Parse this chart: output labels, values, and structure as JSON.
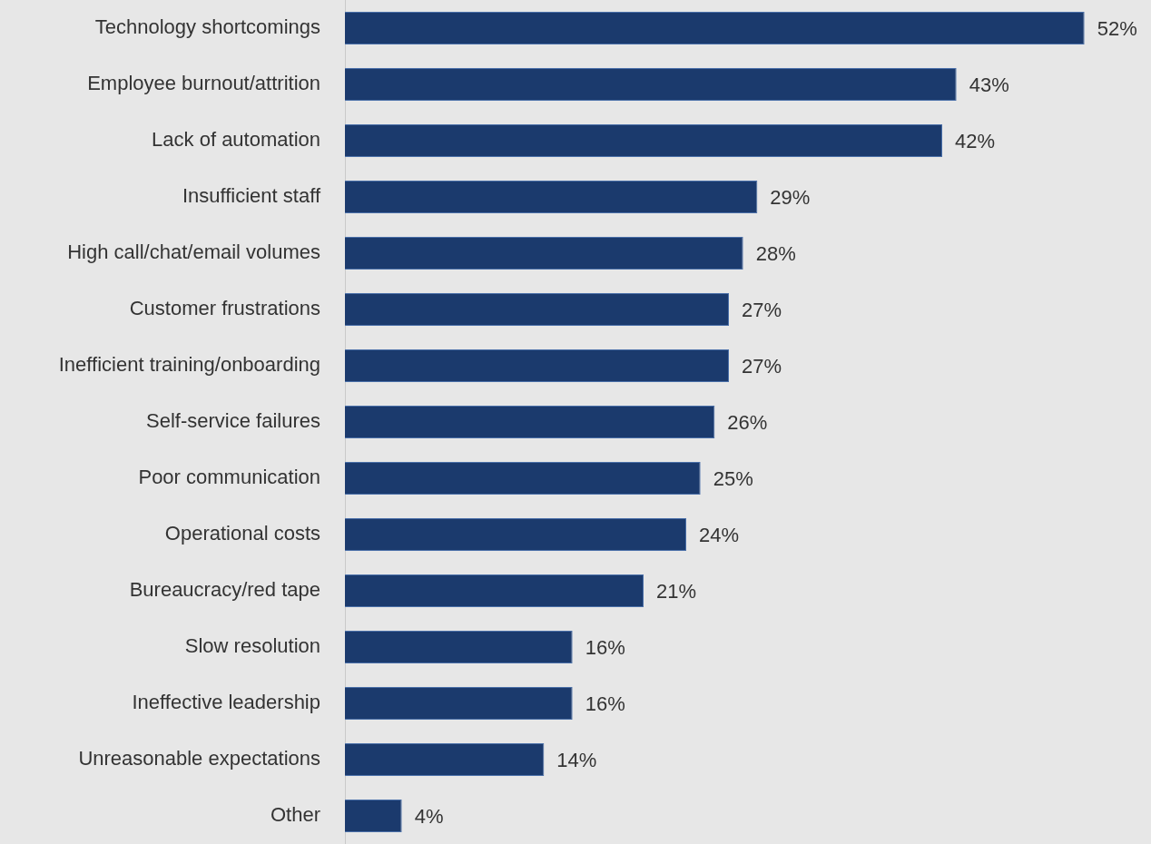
{
  "chart_data": {
    "type": "bar",
    "orientation": "horizontal",
    "data_labels": true,
    "categories": [
      "Technology shortcomings",
      "Employee burnout/attrition",
      "Lack of automation",
      "Insufficient staff",
      "High call/chat/email volumes",
      "Customer frustrations",
      "Inefficient training/onboarding",
      "Self-service failures",
      "Poor communication",
      "Operational costs",
      "Bureaucracy/red tape",
      "Slow resolution",
      "Ineffective leadership",
      "Unreasonable expectations",
      "Other"
    ],
    "values": [
      52,
      43,
      42,
      29,
      28,
      27,
      27,
      26,
      25,
      24,
      21,
      16,
      16,
      14,
      4
    ],
    "value_labels": [
      "52%",
      "43%",
      "42%",
      "29%",
      "28%",
      "27%",
      "27%",
      "26%",
      "25%",
      "24%",
      "21%",
      "16%",
      "16%",
      "14%",
      "4%"
    ],
    "color": "#1b3a6d"
  }
}
